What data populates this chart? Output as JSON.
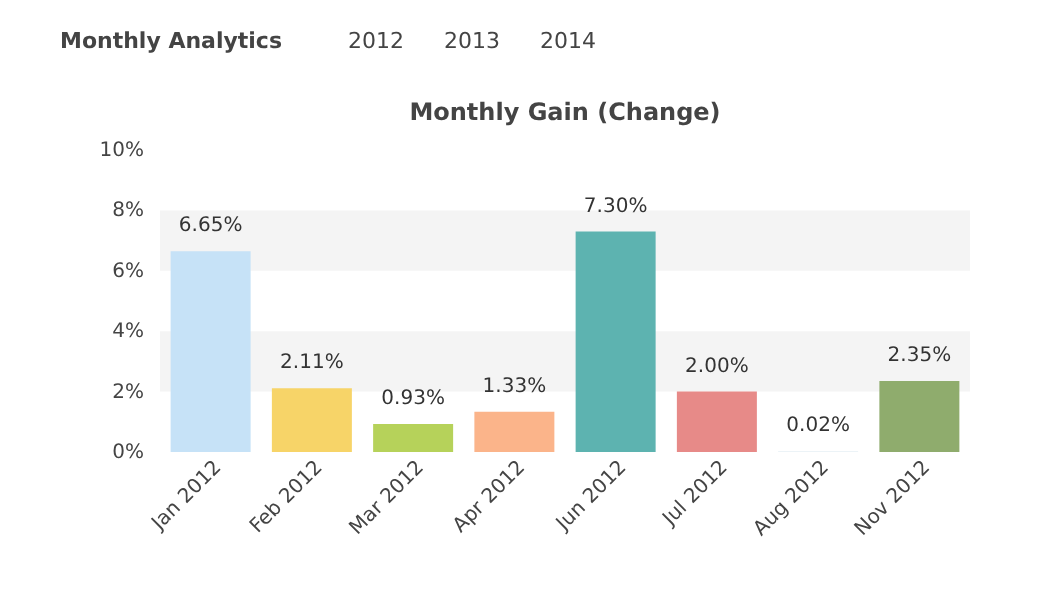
{
  "chart_data": {
    "type": "bar",
    "title": "Monthly Gain (Change)",
    "annotations": [
      "Monthly Analytics",
      "2012",
      "2013",
      "2014"
    ],
    "categories": [
      "Jan 2012",
      "Feb 2012",
      "Mar 2012",
      "Apr 2012",
      "Jun 2012",
      "Jul 2012",
      "Aug 2012",
      "Nov 2012"
    ],
    "values": [
      6.65,
      2.11,
      0.93,
      1.33,
      7.3,
      2.0,
      0.02,
      2.35
    ],
    "colors": [
      "#c6e2f7",
      "#f7d468",
      "#b6d25a",
      "#fbb48a",
      "#5db3b0",
      "#e78a88",
      "#d9e8ef",
      "#8fac6d"
    ],
    "value_labels": [
      "6.65%",
      "2.11%",
      "0.93%",
      "1.33%",
      "7.30%",
      "2.00%",
      "0.02%",
      "2.35%"
    ],
    "ylim": [
      0,
      10
    ],
    "yticks": [
      {
        "value": 0,
        "label": "0%"
      },
      {
        "value": 2,
        "label": "2%"
      },
      {
        "value": 4,
        "label": "4%"
      },
      {
        "value": 6,
        "label": "6%"
      },
      {
        "value": 8,
        "label": "8%"
      },
      {
        "value": 10,
        "label": "10%"
      }
    ],
    "bands": [
      {
        "axis": "y",
        "from": 2,
        "to": 4,
        "color": "#f4f4f4"
      },
      {
        "axis": "y",
        "from": 6,
        "to": 8,
        "color": "#f4f4f4"
      }
    ]
  }
}
